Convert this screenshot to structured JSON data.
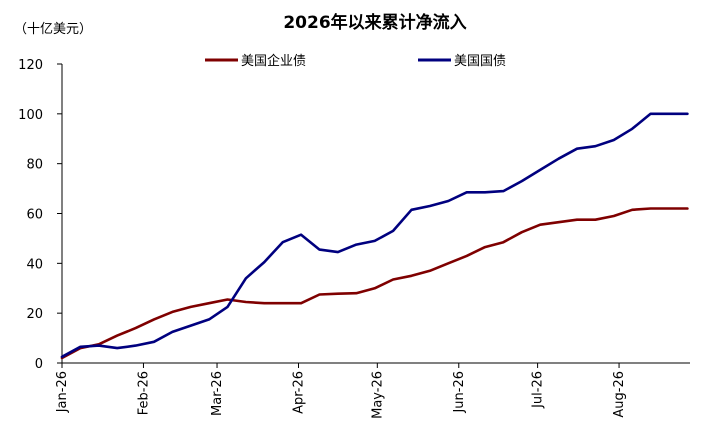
{
  "chart_data": {
    "type": "line",
    "title": "2026年以来累计净流入",
    "unit_label": "（十亿美元）",
    "xlabel": "",
    "ylabel": "",
    "ylim": [
      0,
      120
    ],
    "yticks": [
      0,
      20,
      40,
      60,
      80,
      100,
      120
    ],
    "x_ticks": [
      "Jan-26",
      "Feb-26",
      "Mar-26",
      "Apr-26",
      "May-26",
      "Jun-26",
      "Jul-26",
      "Aug-26"
    ],
    "x_range": [
      "2026-01-01",
      "2026-08-28"
    ],
    "grid": false,
    "legend_position": "top",
    "x": [
      "2026-01-01",
      "2026-01-08",
      "2026-01-15",
      "2026-01-22",
      "2026-01-29",
      "2026-02-05",
      "2026-02-12",
      "2026-02-19",
      "2026-02-26",
      "2026-03-05",
      "2026-03-12",
      "2026-03-19",
      "2026-03-26",
      "2026-04-02",
      "2026-04-09",
      "2026-04-16",
      "2026-04-23",
      "2026-04-30",
      "2026-05-07",
      "2026-05-14",
      "2026-05-21",
      "2026-05-28",
      "2026-06-04",
      "2026-06-11",
      "2026-06-18",
      "2026-06-25",
      "2026-07-02",
      "2026-07-09",
      "2026-07-16",
      "2026-07-23",
      "2026-07-30",
      "2026-08-06",
      "2026-08-13",
      "2026-08-20",
      "2026-08-27"
    ],
    "series": [
      {
        "name": "美国企业债",
        "color": "#7f0000",
        "values": [
          2,
          6,
          7.5,
          11,
          14,
          17.5,
          20.5,
          22.5,
          24,
          25.5,
          24.5,
          24,
          24,
          24,
          27.5,
          27.8,
          28,
          30,
          33.5,
          35,
          37,
          40,
          43,
          46.5,
          48.5,
          52.5,
          55.5,
          56.5,
          57.5,
          57.5,
          59,
          61.5,
          62,
          62,
          62
        ]
      },
      {
        "name": "美国国债",
        "color": "#00007f",
        "values": [
          2.5,
          6.5,
          7,
          6,
          7,
          8.5,
          12.5,
          15,
          17.5,
          22.5,
          34,
          40.5,
          48.5,
          51.5,
          45.5,
          44.5,
          47.5,
          49,
          53,
          61.5,
          63,
          65,
          68.5,
          68.5,
          69,
          73,
          77.5,
          82,
          86,
          87,
          89.5,
          94,
          100,
          100,
          100
        ]
      }
    ]
  }
}
